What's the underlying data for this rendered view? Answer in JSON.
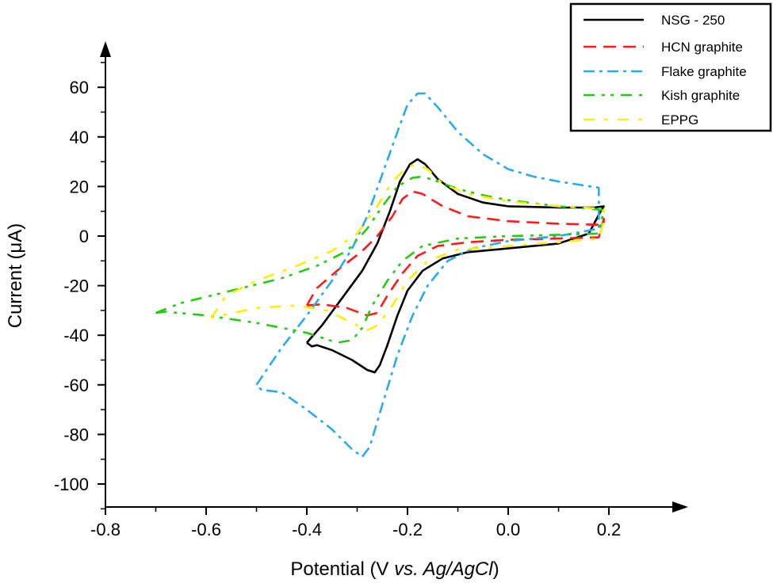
{
  "chart_data": {
    "type": "line",
    "title": "",
    "xlabel_parts": {
      "normal": "Potential (V ",
      "italic": "vs. Ag/AgCl",
      "close": ")"
    },
    "ylabel": "Current (μA)",
    "xlim": [
      -0.8,
      0.35
    ],
    "ylim": [
      -108,
      75
    ],
    "xticks": [
      -0.8,
      -0.6,
      -0.4,
      -0.2,
      0.0,
      0.2
    ],
    "xtick_labels": [
      "-0.8",
      "-0.6",
      "-0.4",
      "-0.2",
      "0.0",
      "0.2"
    ],
    "yticks": [
      60,
      40,
      20,
      0,
      -20,
      -40,
      -60,
      -80,
      -100
    ],
    "ytick_labels": [
      "60",
      "40",
      "20",
      "0",
      "-20",
      "-40",
      "-60",
      "-80",
      "-100"
    ],
    "grid": false,
    "legend_position": "top-right",
    "series": [
      {
        "name": "NSG - 250",
        "color": "#000000",
        "dash": "solid",
        "points": [
          [
            -0.4,
            -43
          ],
          [
            -0.37,
            -36
          ],
          [
            -0.33,
            -25
          ],
          [
            -0.29,
            -14
          ],
          [
            -0.26,
            -3
          ],
          [
            -0.235,
            10
          ],
          [
            -0.215,
            22
          ],
          [
            -0.195,
            29
          ],
          [
            -0.18,
            31
          ],
          [
            -0.165,
            29
          ],
          [
            -0.14,
            23
          ],
          [
            -0.1,
            17
          ],
          [
            -0.05,
            13.5
          ],
          [
            0.0,
            12
          ],
          [
            0.1,
            11.5
          ],
          [
            0.17,
            11.5
          ],
          [
            0.19,
            12
          ],
          [
            0.185,
            10.5
          ],
          [
            0.16,
            1
          ],
          [
            0.1,
            -3
          ],
          [
            0.0,
            -5
          ],
          [
            -0.08,
            -6.5
          ],
          [
            -0.13,
            -9
          ],
          [
            -0.17,
            -14
          ],
          [
            -0.2,
            -22
          ],
          [
            -0.22,
            -32
          ],
          [
            -0.24,
            -44
          ],
          [
            -0.255,
            -52
          ],
          [
            -0.265,
            -55
          ],
          [
            -0.28,
            -54
          ],
          [
            -0.31,
            -50
          ],
          [
            -0.35,
            -46
          ],
          [
            -0.38,
            -44
          ],
          [
            -0.39,
            -44.5
          ],
          [
            -0.4,
            -43
          ]
        ]
      },
      {
        "name": "HCN graphite",
        "color": "#ff1a1a",
        "dash": "dashed",
        "points": [
          [
            -0.4,
            -28
          ],
          [
            -0.38,
            -21
          ],
          [
            -0.34,
            -14
          ],
          [
            -0.29,
            -6
          ],
          [
            -0.26,
            0
          ],
          [
            -0.23,
            8
          ],
          [
            -0.21,
            15
          ],
          [
            -0.19,
            18
          ],
          [
            -0.17,
            17
          ],
          [
            -0.13,
            12
          ],
          [
            -0.08,
            8
          ],
          [
            0.0,
            6
          ],
          [
            0.1,
            5
          ],
          [
            0.19,
            4.5
          ],
          [
            0.19,
            7
          ],
          [
            0.18,
            -0.5
          ],
          [
            0.1,
            -1
          ],
          [
            0.0,
            -1.5
          ],
          [
            -0.08,
            -2.5
          ],
          [
            -0.14,
            -4
          ],
          [
            -0.18,
            -8
          ],
          [
            -0.21,
            -15
          ],
          [
            -0.24,
            -24
          ],
          [
            -0.26,
            -31
          ],
          [
            -0.28,
            -32
          ],
          [
            -0.32,
            -29
          ],
          [
            -0.37,
            -27.5
          ],
          [
            -0.4,
            -28
          ]
        ]
      },
      {
        "name": "Flake graphite",
        "color": "#29aaf0",
        "dash": "dash-dot",
        "points": [
          [
            -0.5,
            -60
          ],
          [
            -0.45,
            -45
          ],
          [
            -0.4,
            -32
          ],
          [
            -0.35,
            -18
          ],
          [
            -0.31,
            -5
          ],
          [
            -0.28,
            8
          ],
          [
            -0.25,
            25
          ],
          [
            -0.22,
            42
          ],
          [
            -0.2,
            53
          ],
          [
            -0.18,
            57.5
          ],
          [
            -0.165,
            57.5
          ],
          [
            -0.14,
            52
          ],
          [
            -0.1,
            42
          ],
          [
            -0.05,
            33
          ],
          [
            0.0,
            27
          ],
          [
            0.05,
            24
          ],
          [
            0.1,
            22
          ],
          [
            0.18,
            19.5
          ],
          [
            0.18,
            3
          ],
          [
            0.1,
            0
          ],
          [
            0.0,
            -2
          ],
          [
            -0.07,
            -5
          ],
          [
            -0.12,
            -10
          ],
          [
            -0.16,
            -20
          ],
          [
            -0.19,
            -32
          ],
          [
            -0.22,
            -48
          ],
          [
            -0.25,
            -68
          ],
          [
            -0.275,
            -85
          ],
          [
            -0.29,
            -89
          ],
          [
            -0.31,
            -86
          ],
          [
            -0.35,
            -78
          ],
          [
            -0.4,
            -70
          ],
          [
            -0.45,
            -63
          ],
          [
            -0.49,
            -62
          ],
          [
            -0.5,
            -60
          ]
        ]
      },
      {
        "name": "Kish graphite",
        "color": "#22cc11",
        "dash": "dash-dot-dot",
        "points": [
          [
            -0.7,
            -31
          ],
          [
            -0.65,
            -27
          ],
          [
            -0.55,
            -22
          ],
          [
            -0.45,
            -17
          ],
          [
            -0.38,
            -12
          ],
          [
            -0.32,
            -6
          ],
          [
            -0.28,
            3
          ],
          [
            -0.25,
            12
          ],
          [
            -0.22,
            20
          ],
          [
            -0.19,
            23.5
          ],
          [
            -0.17,
            24
          ],
          [
            -0.14,
            22
          ],
          [
            -0.1,
            19
          ],
          [
            -0.05,
            16.5
          ],
          [
            0.0,
            14.5
          ],
          [
            0.1,
            12
          ],
          [
            0.19,
            10.5
          ],
          [
            0.18,
            1
          ],
          [
            0.1,
            0.5
          ],
          [
            0.0,
            0
          ],
          [
            -0.1,
            -1
          ],
          [
            -0.17,
            -4
          ],
          [
            -0.21,
            -10
          ],
          [
            -0.24,
            -18
          ],
          [
            -0.27,
            -28
          ],
          [
            -0.29,
            -37
          ],
          [
            -0.31,
            -42
          ],
          [
            -0.34,
            -43
          ],
          [
            -0.4,
            -39
          ],
          [
            -0.5,
            -35
          ],
          [
            -0.6,
            -32
          ],
          [
            -0.68,
            -30.5
          ],
          [
            -0.7,
            -31
          ]
        ]
      },
      {
        "name": "EPPG",
        "color": "#ffee00",
        "dash": "long-dash-dot",
        "points": [
          [
            -0.59,
            -33
          ],
          [
            -0.56,
            -24
          ],
          [
            -0.5,
            -18
          ],
          [
            -0.42,
            -12
          ],
          [
            -0.35,
            -6
          ],
          [
            -0.3,
            1
          ],
          [
            -0.26,
            12
          ],
          [
            -0.23,
            22
          ],
          [
            -0.2,
            28
          ],
          [
            -0.18,
            29
          ],
          [
            -0.16,
            27
          ],
          [
            -0.13,
            21
          ],
          [
            -0.08,
            17
          ],
          [
            0.0,
            14
          ],
          [
            0.1,
            12
          ],
          [
            0.19,
            11
          ],
          [
            0.19,
            6
          ],
          [
            0.18,
            -1
          ],
          [
            0.1,
            -2.5
          ],
          [
            0.0,
            -4
          ],
          [
            -0.1,
            -5.5
          ],
          [
            -0.16,
            -10
          ],
          [
            -0.2,
            -18
          ],
          [
            -0.23,
            -28
          ],
          [
            -0.26,
            -36
          ],
          [
            -0.28,
            -38
          ],
          [
            -0.31,
            -35
          ],
          [
            -0.36,
            -30
          ],
          [
            -0.42,
            -28
          ],
          [
            -0.5,
            -29
          ],
          [
            -0.57,
            -32
          ],
          [
            -0.59,
            -33
          ]
        ]
      }
    ]
  }
}
